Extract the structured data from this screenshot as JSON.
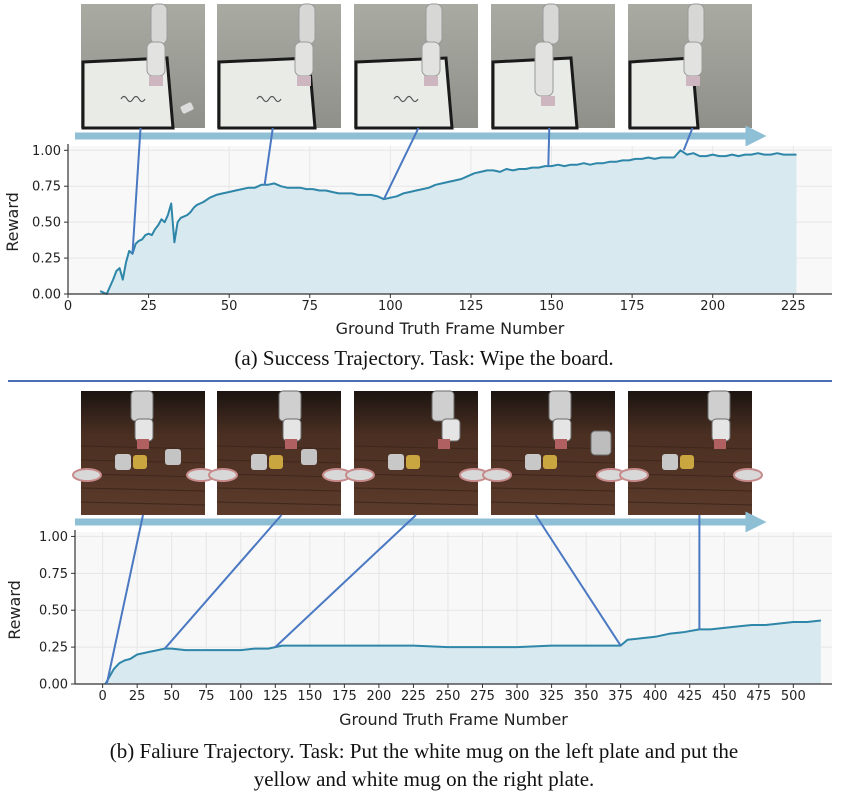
{
  "figure": {
    "caption_a": "(a) Success Trajectory. Task: Wipe the board.",
    "caption_b_line1": "(b) Faliure Trajectory. Task: Put the white mug on the left plate and put the",
    "caption_b_line2": "yellow and white mug on the right plate."
  },
  "colors": {
    "line": "#2e86a8",
    "fill": "#d9e9f0",
    "arrow": "#8fbfd4",
    "connector": "#4a78c2",
    "divider": "#4a6fb5",
    "plot_bg": "#f8f8f8"
  },
  "chart_data": [
    {
      "type": "area",
      "xlabel": "Ground Truth Frame Number",
      "ylabel": "Reward",
      "xlim": [
        0,
        237
      ],
      "ylim": [
        0,
        1.03
      ],
      "xticks": [
        0,
        25,
        50,
        75,
        100,
        125,
        150,
        175,
        200,
        225
      ],
      "yticks": [
        0.0,
        0.25,
        0.5,
        0.75,
        1.0
      ],
      "ytick_labels": [
        "0.00",
        "0.25",
        "0.50",
        "0.75",
        "1.00"
      ],
      "grid": true,
      "keyframes": [
        20,
        61,
        98,
        149,
        191
      ],
      "x": [
        10,
        12,
        14,
        15,
        16,
        17,
        18,
        19,
        20,
        21,
        22,
        23,
        24,
        25,
        26,
        27,
        28,
        29,
        30,
        31,
        32,
        33,
        34,
        35,
        36,
        37,
        38,
        39,
        40,
        42,
        44,
        46,
        48,
        50,
        52,
        54,
        56,
        58,
        60,
        62,
        64,
        66,
        68,
        70,
        72,
        74,
        76,
        78,
        80,
        82,
        84,
        86,
        88,
        90,
        92,
        94,
        96,
        98,
        100,
        102,
        104,
        106,
        108,
        110,
        112,
        114,
        116,
        118,
        120,
        122,
        124,
        126,
        128,
        130,
        132,
        134,
        136,
        138,
        140,
        142,
        144,
        146,
        148,
        150,
        152,
        154,
        156,
        158,
        160,
        162,
        164,
        166,
        168,
        170,
        172,
        174,
        176,
        178,
        180,
        182,
        184,
        186,
        188,
        190,
        192,
        194,
        196,
        198,
        200,
        202,
        204,
        206,
        208,
        210,
        212,
        214,
        216,
        218,
        220,
        222,
        224,
        226
      ],
      "y": [
        0.02,
        0.0,
        0.1,
        0.16,
        0.18,
        0.1,
        0.22,
        0.3,
        0.28,
        0.35,
        0.37,
        0.38,
        0.41,
        0.42,
        0.41,
        0.45,
        0.48,
        0.52,
        0.5,
        0.55,
        0.63,
        0.36,
        0.5,
        0.53,
        0.54,
        0.55,
        0.57,
        0.6,
        0.62,
        0.64,
        0.67,
        0.69,
        0.7,
        0.71,
        0.72,
        0.73,
        0.74,
        0.74,
        0.76,
        0.76,
        0.77,
        0.75,
        0.74,
        0.74,
        0.74,
        0.73,
        0.73,
        0.72,
        0.72,
        0.71,
        0.7,
        0.7,
        0.7,
        0.69,
        0.69,
        0.69,
        0.68,
        0.66,
        0.67,
        0.68,
        0.7,
        0.71,
        0.72,
        0.73,
        0.74,
        0.76,
        0.77,
        0.78,
        0.79,
        0.8,
        0.82,
        0.84,
        0.85,
        0.86,
        0.86,
        0.85,
        0.87,
        0.86,
        0.87,
        0.87,
        0.88,
        0.88,
        0.89,
        0.89,
        0.9,
        0.89,
        0.9,
        0.9,
        0.91,
        0.9,
        0.91,
        0.91,
        0.92,
        0.92,
        0.93,
        0.93,
        0.94,
        0.94,
        0.95,
        0.94,
        0.95,
        0.95,
        0.95,
        1.0,
        0.97,
        0.98,
        0.96,
        0.96,
        0.97,
        0.96,
        0.96,
        0.97,
        0.96,
        0.97,
        0.97,
        0.98,
        0.97,
        0.97,
        0.98,
        0.97,
        0.97,
        0.97
      ]
    },
    {
      "type": "area",
      "xlabel": "Ground Truth Frame Number",
      "ylabel": "Reward",
      "xlim": [
        -20,
        528
      ],
      "ylim": [
        0,
        1.03
      ],
      "xticks": [
        0,
        25,
        50,
        75,
        100,
        125,
        150,
        175,
        200,
        225,
        250,
        275,
        300,
        325,
        350,
        375,
        400,
        425,
        450,
        475,
        500
      ],
      "yticks": [
        0.0,
        0.25,
        0.5,
        0.75,
        1.0
      ],
      "ytick_labels": [
        "0.00",
        "0.25",
        "0.50",
        "0.75",
        "1.00"
      ],
      "grid": true,
      "keyframes": [
        3,
        45,
        125,
        375,
        432
      ],
      "x": [
        2,
        5,
        8,
        12,
        16,
        20,
        25,
        30,
        35,
        40,
        45,
        50,
        60,
        70,
        80,
        90,
        100,
        110,
        120,
        125,
        130,
        140,
        150,
        175,
        200,
        225,
        250,
        275,
        300,
        325,
        350,
        375,
        380,
        390,
        400,
        410,
        420,
        432,
        440,
        450,
        460,
        470,
        480,
        490,
        500,
        510,
        520
      ],
      "y": [
        0.0,
        0.05,
        0.1,
        0.14,
        0.16,
        0.17,
        0.2,
        0.21,
        0.22,
        0.23,
        0.24,
        0.24,
        0.23,
        0.23,
        0.23,
        0.23,
        0.23,
        0.24,
        0.24,
        0.25,
        0.26,
        0.26,
        0.26,
        0.26,
        0.26,
        0.26,
        0.25,
        0.25,
        0.25,
        0.26,
        0.26,
        0.26,
        0.3,
        0.31,
        0.32,
        0.34,
        0.35,
        0.37,
        0.37,
        0.38,
        0.39,
        0.4,
        0.4,
        0.41,
        0.42,
        0.42,
        0.43
      ]
    }
  ]
}
